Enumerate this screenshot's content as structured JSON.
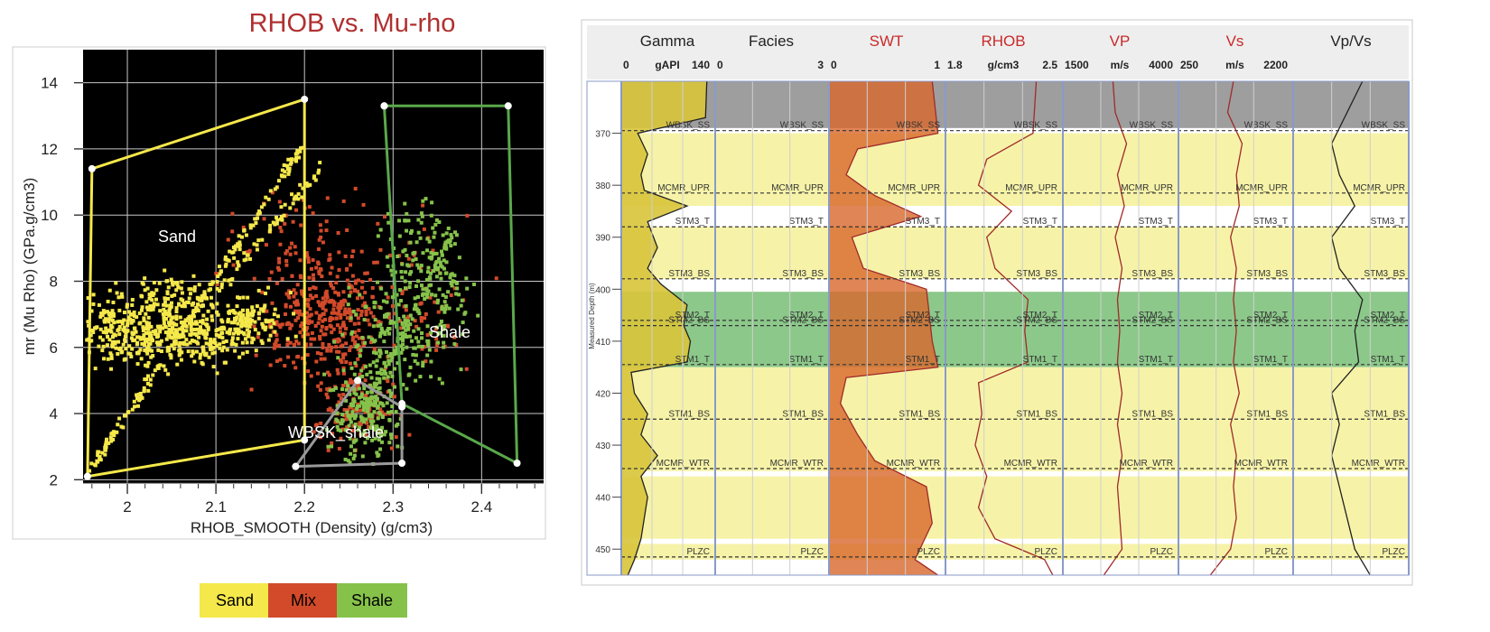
{
  "crossplot": {
    "title": "RHOB vs. Mu-rho",
    "xlabel": "RHOB_SMOOTH (Density) (g/cm3)",
    "ylabel": "mr (Mu Rho) (GPa.g/cm3)",
    "region_labels": [
      "Sand",
      "Shale",
      "WBSK_shale"
    ],
    "legend": [
      {
        "label": "Sand",
        "color": "#f5e84a"
      },
      {
        "label": "Mix",
        "color": "#d24a2a"
      },
      {
        "label": "Shale",
        "color": "#86c24a"
      }
    ]
  },
  "chart_data": [
    {
      "type": "scatter",
      "title": "RHOB vs. Mu-rho",
      "xlabel": "RHOB_SMOOTH (Density) (g/cm3)",
      "ylabel": "mr (Mu Rho) (GPa.g/cm3)",
      "xlim": [
        1.95,
        2.47
      ],
      "ylim": [
        1.9,
        15
      ],
      "xticks": [
        2,
        2.1,
        2.2,
        2.3,
        2.4
      ],
      "yticks": [
        2,
        4,
        6,
        8,
        10,
        12,
        14
      ],
      "grid": true,
      "background": "#000000",
      "series": [
        {
          "name": "Sand",
          "color": "#f5e84a",
          "clusters": [
            [
              2.0,
              6.5,
              0.05,
              1.0,
              260
            ],
            [
              2.08,
              6.4,
              0.05,
              0.9,
              220
            ],
            [
              2.14,
              6.8,
              0.04,
              0.8,
              120
            ],
            [
              2.05,
              7.5,
              0.04,
              0.6,
              80
            ]
          ],
          "trends": [
            [
              1.96,
              2.3,
              2.2,
              12.2,
              200
            ],
            [
              2.1,
              7.6,
              2.22,
              11.5,
              60
            ]
          ]
        },
        {
          "name": "Mix",
          "color": "#d24a2a",
          "clusters": [
            [
              2.22,
              6.8,
              0.06,
              1.5,
              320
            ],
            [
              2.26,
              4.2,
              0.04,
              1.2,
              140
            ],
            [
              2.2,
              9.0,
              0.08,
              1.6,
              90
            ],
            [
              2.32,
              7.5,
              0.07,
              2.0,
              80
            ]
          ],
          "trends": []
        },
        {
          "name": "Shale",
          "color": "#86c24a",
          "clusters": [
            [
              2.27,
              4.0,
              0.035,
              1.2,
              200
            ],
            [
              2.3,
              6.5,
              0.05,
              1.5,
              160
            ],
            [
              2.33,
              9.0,
              0.04,
              1.5,
              90
            ],
            [
              2.36,
              7.5,
              0.03,
              1.5,
              60
            ]
          ],
          "trends": [
            [
              2.27,
              4.2,
              2.37,
              9.5,
              80
            ]
          ]
        }
      ],
      "polygons": [
        {
          "name": "Sand",
          "color": "#f5e84a",
          "points": [
            [
              1.955,
              2.1
            ],
            [
              1.96,
              11.4
            ],
            [
              2.2,
              13.5
            ],
            [
              2.2,
              3.2
            ],
            [
              1.955,
              2.1
            ]
          ]
        },
        {
          "name": "Shale",
          "color": "#5aa84a",
          "points": [
            [
              2.29,
              13.3
            ],
            [
              2.43,
              13.3
            ],
            [
              2.44,
              2.5
            ],
            [
              2.31,
              4.3
            ],
            [
              2.29,
              13.3
            ]
          ]
        },
        {
          "name": "WBSK_shale",
          "color": "#9a9a9a",
          "points": [
            [
              2.19,
              2.4
            ],
            [
              2.26,
              5.0
            ],
            [
              2.31,
              4.2
            ],
            [
              2.31,
              2.5
            ],
            [
              2.19,
              2.4
            ]
          ]
        }
      ]
    },
    {
      "type": "line",
      "title": "",
      "ylabel": "Measured Depth (m)",
      "depth_range": [
        360,
        455
      ],
      "depth_ticks": [
        370,
        380,
        390,
        400,
        410,
        420,
        430,
        440,
        450
      ],
      "tracks": [
        {
          "name": "Gamma",
          "unit": "gAPI",
          "min": 0,
          "max": 140,
          "name_color": "#222222",
          "points": [
            [
              360,
              130
            ],
            [
              367,
              128
            ],
            [
              370,
              25
            ],
            [
              374,
              40
            ],
            [
              378,
              30
            ],
            [
              381,
              35
            ],
            [
              384,
              100
            ],
            [
              387,
              40
            ],
            [
              392,
              55
            ],
            [
              396,
              40
            ],
            [
              399,
              60
            ],
            [
              403,
              100
            ],
            [
              407,
              95
            ],
            [
              410,
              105
            ],
            [
              414,
              100
            ],
            [
              416,
              15
            ],
            [
              420,
              20
            ],
            [
              424,
              40
            ],
            [
              428,
              30
            ],
            [
              432,
              55
            ],
            [
              436,
              30
            ],
            [
              440,
              40
            ],
            [
              444,
              35
            ],
            [
              448,
              30
            ],
            [
              452,
              20
            ],
            [
              455,
              10
            ]
          ]
        },
        {
          "name": "Facies",
          "unit": "",
          "min": 0,
          "max": 3,
          "name_color": "#222222",
          "points": []
        },
        {
          "name": "SWT",
          "unit": "",
          "min": 0,
          "max": 1,
          "name_color": "#c82a2a",
          "points": [
            [
              360,
              0.9
            ],
            [
              370,
              0.95
            ],
            [
              373,
              0.25
            ],
            [
              378,
              0.15
            ],
            [
              382,
              0.4
            ],
            [
              386,
              0.8
            ],
            [
              390,
              0.2
            ],
            [
              396,
              0.3
            ],
            [
              400,
              0.85
            ],
            [
              410,
              0.9
            ],
            [
              415,
              0.95
            ],
            [
              417,
              0.15
            ],
            [
              422,
              0.1
            ],
            [
              428,
              0.25
            ],
            [
              433,
              0.4
            ],
            [
              438,
              0.85
            ],
            [
              445,
              0.9
            ],
            [
              452,
              0.75
            ],
            [
              455,
              0.95
            ]
          ]
        },
        {
          "name": "RHOB",
          "unit": "g/cm3",
          "min": 1.8,
          "max": 2.5,
          "name_color": "#c82a2a",
          "points": [
            [
              360,
              2.35
            ],
            [
              370,
              2.33
            ],
            [
              375,
              2.05
            ],
            [
              380,
              2.0
            ],
            [
              385,
              2.2
            ],
            [
              390,
              2.05
            ],
            [
              396,
              2.1
            ],
            [
              402,
              2.3
            ],
            [
              408,
              2.28
            ],
            [
              414,
              2.3
            ],
            [
              418,
              2.0
            ],
            [
              424,
              2.02
            ],
            [
              430,
              1.98
            ],
            [
              436,
              2.05
            ],
            [
              442,
              2.0
            ],
            [
              448,
              2.1
            ],
            [
              452,
              2.4
            ],
            [
              455,
              2.45
            ]
          ]
        },
        {
          "name": "VP",
          "unit": "m/s",
          "min": 1500,
          "max": 4000,
          "name_color": "#c82a2a",
          "points": [
            [
              360,
              2600
            ],
            [
              366,
              2650
            ],
            [
              372,
              2900
            ],
            [
              378,
              2700
            ],
            [
              384,
              2850
            ],
            [
              390,
              2650
            ],
            [
              396,
              2800
            ],
            [
              402,
              2700
            ],
            [
              408,
              2750
            ],
            [
              414,
              2700
            ],
            [
              420,
              2800
            ],
            [
              426,
              2700
            ],
            [
              432,
              2800
            ],
            [
              438,
              2700
            ],
            [
              444,
              2750
            ],
            [
              450,
              2800
            ],
            [
              455,
              2400
            ]
          ]
        },
        {
          "name": "Vs",
          "unit": "m/s",
          "min": 250,
          "max": 2200,
          "name_color": "#c82a2a",
          "points": [
            [
              360,
              1200
            ],
            [
              366,
              1100
            ],
            [
              372,
              1350
            ],
            [
              378,
              1250
            ],
            [
              384,
              1300
            ],
            [
              390,
              1150
            ],
            [
              396,
              1250
            ],
            [
              402,
              1200
            ],
            [
              408,
              1250
            ],
            [
              414,
              1200
            ],
            [
              420,
              1300
            ],
            [
              426,
              1150
            ],
            [
              432,
              1250
            ],
            [
              438,
              1200
            ],
            [
              444,
              1250
            ],
            [
              450,
              1150
            ],
            [
              455,
              800
            ]
          ]
        },
        {
          "name": "Vp/Vs",
          "unit": "",
          "min": 1.5,
          "max": 3.0,
          "name_color": "#222222",
          "points": [
            [
              360,
              2.4
            ],
            [
              366,
              2.2
            ],
            [
              372,
              2.0
            ],
            [
              378,
              2.1
            ],
            [
              384,
              2.3
            ],
            [
              390,
              2.0
            ],
            [
              396,
              2.1
            ],
            [
              402,
              2.4
            ],
            [
              408,
              2.3
            ],
            [
              414,
              2.35
            ],
            [
              420,
              2.0
            ],
            [
              426,
              2.1
            ],
            [
              432,
              2.0
            ],
            [
              438,
              2.1
            ],
            [
              444,
              2.2
            ],
            [
              450,
              2.3
            ],
            [
              455,
              2.5
            ]
          ]
        }
      ],
      "tops": [
        {
          "name": "WBSK_SS",
          "depth": 369.5
        },
        {
          "name": "MCMR_UPR",
          "depth": 381.5
        },
        {
          "name": "STM3_T",
          "depth": 388
        },
        {
          "name": "STM3_BS",
          "depth": 398
        },
        {
          "name": "STM2_T",
          "depth": 406
        },
        {
          "name": "STM2_BS",
          "depth": 407
        },
        {
          "name": "STM1_T",
          "depth": 414.5
        },
        {
          "name": "STM1_BS",
          "depth": 425
        },
        {
          "name": "MCMR_WTR",
          "depth": 434.5
        },
        {
          "name": "PLZC",
          "depth": 451.5
        }
      ],
      "zones": [
        {
          "from": 360,
          "to": 369,
          "color": "#9e9e9e"
        },
        {
          "from": 370,
          "to": 384,
          "color": "#f6f3a8"
        },
        {
          "from": 384,
          "to": 388,
          "color": "#ffffff"
        },
        {
          "from": 388,
          "to": 398,
          "color": "#f6f3a8"
        },
        {
          "from": 400.5,
          "to": 415,
          "color": "#8cc88a"
        },
        {
          "from": 415,
          "to": 435,
          "color": "#f6f3a8"
        },
        {
          "from": 436,
          "to": 448,
          "color": "#f6f3a8"
        },
        {
          "from": 449,
          "to": 452,
          "color": "#f6f3a8"
        }
      ]
    }
  ]
}
